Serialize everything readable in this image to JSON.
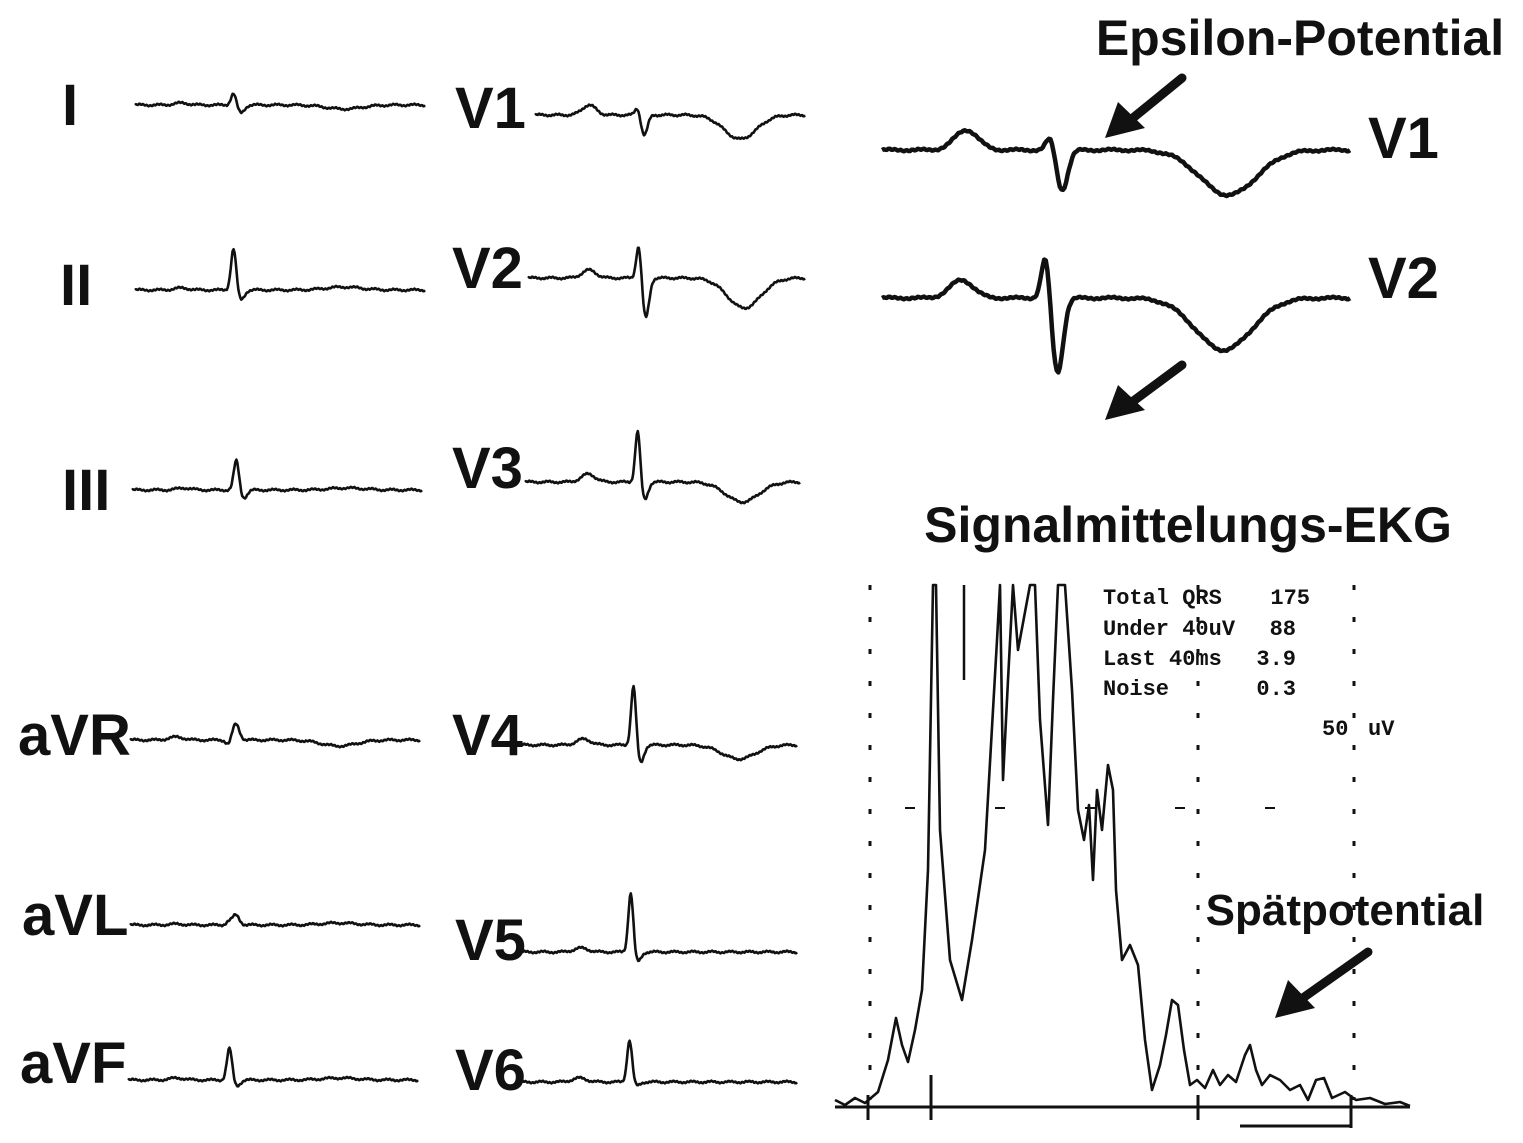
{
  "limb_leads": [
    "I",
    "II",
    "III",
    "aVR",
    "aVL",
    "aVF"
  ],
  "chest_leads": [
    "V1",
    "V2",
    "V3",
    "V4",
    "V5",
    "V6"
  ],
  "epsilon": {
    "title": "Epsilon-Potential",
    "leads": [
      "V1",
      "V2"
    ]
  },
  "saecg": {
    "title": "Signalmittelungs-EKG",
    "stats": [
      {
        "label": "Total QRS",
        "value": 175
      },
      {
        "label": "Under 40uV",
        "value": 88
      },
      {
        "label": "Last 40ms",
        "value": 3.9
      },
      {
        "label": "Noise",
        "value": 0.3
      }
    ],
    "scale": {
      "value": 50,
      "unit": "uV"
    },
    "annotation": "Spätpotential"
  }
}
